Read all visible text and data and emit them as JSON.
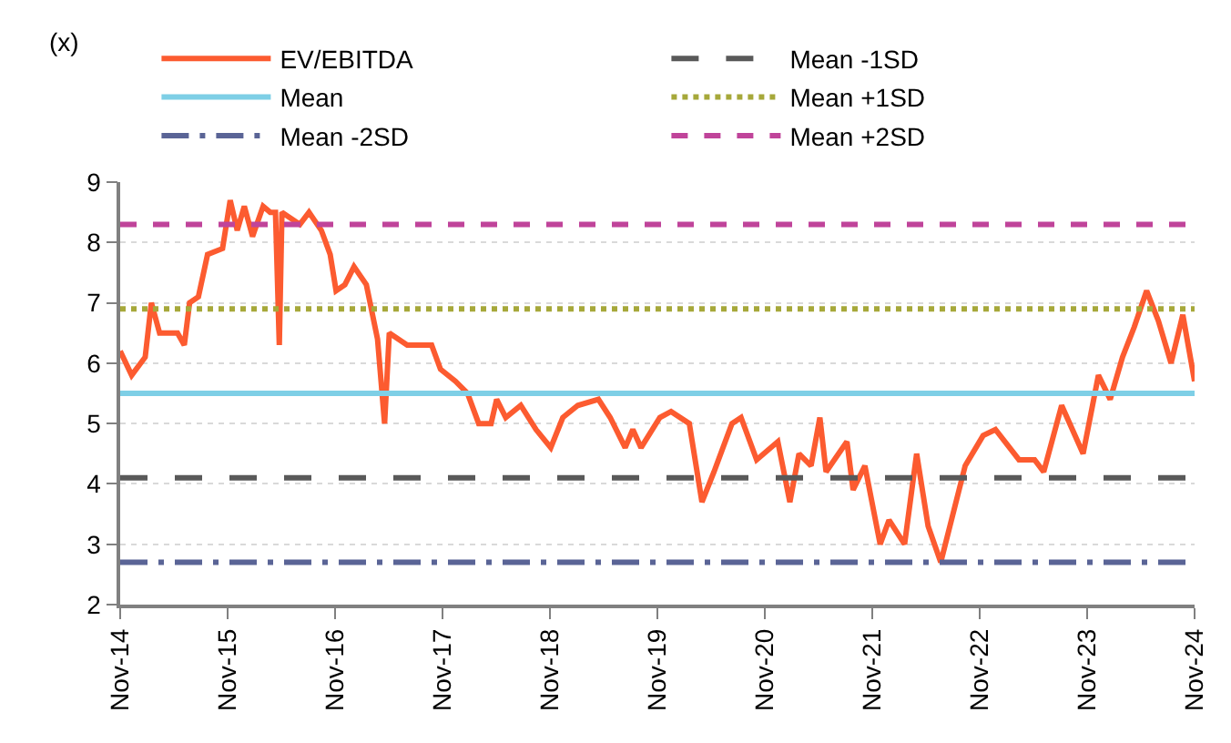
{
  "chart_data": {
    "type": "line",
    "ylabel": "(x)",
    "x": [
      "2014-11-01",
      "2014-12-10",
      "2015-01-25",
      "2015-02-15",
      "2015-03-15",
      "2015-05-15",
      "2015-06-07",
      "2015-06-25",
      "2015-07-25",
      "2015-08-25",
      "2015-10-15",
      "2015-11-10",
      "2015-12-04",
      "2015-12-28",
      "2016-01-25",
      "2016-03-01",
      "2016-03-25",
      "2016-04-12",
      "2016-04-25",
      "2016-05-04",
      "2016-07-04",
      "2016-08-04",
      "2016-09-15",
      "2016-10-15",
      "2016-11-04",
      "2016-12-04",
      "2017-01-04",
      "2017-02-15",
      "2017-03-25",
      "2017-04-18",
      "2017-05-04",
      "2017-07-04",
      "2017-09-25",
      "2017-10-25",
      "2017-12-15",
      "2018-01-25",
      "2018-03-04",
      "2018-04-15",
      "2018-05-04",
      "2018-06-04",
      "2018-07-25",
      "2018-09-15",
      "2018-11-04",
      "2018-12-15",
      "2019-02-04",
      "2019-04-15",
      "2019-05-25",
      "2019-07-15",
      "2019-08-10",
      "2019-09-07",
      "2019-11-10",
      "2019-12-18",
      "2020-02-18",
      "2020-04-01",
      "2020-05-12",
      "2020-07-12",
      "2020-08-12",
      "2020-10-04",
      "2020-12-15",
      "2021-01-25",
      "2021-02-25",
      "2021-04-07",
      "2021-05-07",
      "2021-05-28",
      "2021-08-07",
      "2021-08-28",
      "2021-10-07",
      "2021-11-28",
      "2021-12-28",
      "2022-02-19",
      "2022-04-01",
      "2022-05-10",
      "2022-06-22",
      "2022-09-13",
      "2022-11-13",
      "2022-12-25",
      "2023-03-15",
      "2023-05-07",
      "2023-06-07",
      "2023-08-07",
      "2023-10-19",
      "2023-12-10",
      "2024-01-19",
      "2024-03-01",
      "2024-04-10",
      "2024-05-22",
      "2024-07-01",
      "2024-08-13",
      "2024-09-22",
      "2024-11-01"
    ],
    "series": [
      {
        "name": "EV/EBITDA",
        "color": "#fc5b30",
        "values": [
          6.2,
          5.8,
          6.1,
          7.0,
          6.5,
          6.5,
          6.3,
          7.0,
          7.1,
          7.8,
          7.9,
          8.7,
          8.2,
          8.6,
          8.1,
          8.6,
          8.5,
          8.5,
          6.3,
          8.5,
          8.3,
          8.5,
          8.2,
          7.8,
          7.2,
          7.3,
          7.6,
          7.3,
          6.4,
          5.0,
          6.5,
          6.3,
          6.3,
          5.9,
          5.7,
          5.5,
          5.0,
          5.0,
          5.4,
          5.1,
          5.3,
          4.9,
          4.6,
          5.1,
          5.3,
          5.4,
          5.1,
          4.6,
          4.9,
          4.6,
          5.1,
          5.2,
          5.0,
          3.7,
          4.2,
          5.0,
          5.1,
          4.4,
          4.7,
          3.7,
          4.5,
          4.3,
          5.1,
          4.2,
          4.7,
          3.9,
          4.3,
          3.0,
          3.4,
          3.0,
          4.5,
          3.3,
          2.7,
          4.3,
          4.8,
          4.9,
          4.4,
          4.4,
          4.2,
          5.3,
          4.5,
          5.8,
          5.4,
          6.1,
          6.6,
          7.2,
          6.7,
          6.0,
          6.8,
          5.7
        ]
      }
    ],
    "ref_lines": [
      {
        "axis": "y",
        "value": 4.1,
        "label": "Mean -1SD",
        "color": "#595959",
        "line_style": "longdash"
      },
      {
        "axis": "y",
        "value": 5.5,
        "label": "Mean",
        "color": "#7ecfe6",
        "line_style": "solid"
      },
      {
        "axis": "y",
        "value": 6.9,
        "label": "Mean +1SD",
        "color": "#a6a83a",
        "line_style": "dotted"
      },
      {
        "axis": "y",
        "value": 2.7,
        "label": "Mean -2SD",
        "color": "#5a6496",
        "line_style": "dashdot"
      },
      {
        "axis": "y",
        "value": 8.3,
        "label": "Mean +2SD",
        "color": "#c0449a",
        "line_style": "dashed"
      }
    ],
    "xlim": [
      "2014-11-01",
      "2024-11-01"
    ],
    "xticks": [
      {
        "value": "2014-11-01",
        "label": "Nov-14"
      },
      {
        "value": "2015-11-01",
        "label": "Nov-15"
      },
      {
        "value": "2016-11-01",
        "label": "Nov-16"
      },
      {
        "value": "2017-11-01",
        "label": "Nov-17"
      },
      {
        "value": "2018-11-01",
        "label": "Nov-18"
      },
      {
        "value": "2019-11-01",
        "label": "Nov-19"
      },
      {
        "value": "2020-11-01",
        "label": "Nov-20"
      },
      {
        "value": "2021-11-01",
        "label": "Nov-21"
      },
      {
        "value": "2022-11-01",
        "label": "Nov-22"
      },
      {
        "value": "2023-11-01",
        "label": "Nov-23"
      },
      {
        "value": "2024-11-01",
        "label": "Nov-24"
      }
    ],
    "ylim": [
      2,
      9
    ],
    "yticks": [
      2,
      3,
      4,
      5,
      6,
      7,
      8,
      9
    ],
    "grid": "y",
    "legend": "top",
    "line_style": "solid",
    "marker": "none"
  }
}
